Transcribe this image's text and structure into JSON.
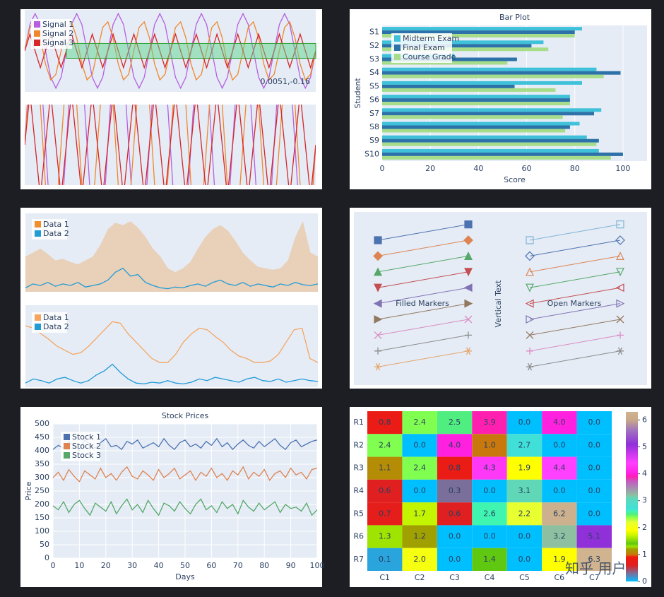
{
  "chart_data": [
    {
      "type": "signal",
      "series": [
        {
          "name": "Signal 1",
          "color": "#b660e0",
          "values": [
            0,
            0.71,
            1,
            0.71,
            0,
            -0.71,
            -1,
            -0.71,
            0,
            0.71,
            1,
            0.71,
            0,
            -0.71,
            -1,
            -0.71,
            0,
            0.71,
            1,
            0.71,
            0,
            -0.71,
            -1,
            -0.71,
            0,
            0.71,
            1,
            0.71,
            0,
            -0.71,
            -1,
            -0.71,
            0,
            0.71,
            1,
            0.71,
            0,
            -0.71,
            -1,
            -0.71,
            0,
            0.71,
            1,
            0.71,
            0,
            -0.71,
            -1,
            -0.71,
            0,
            0.71,
            1,
            0.71,
            0,
            -0.71,
            -1,
            -0.71,
            0
          ]
        },
        {
          "name": "Signal 2",
          "color": "#f0872d",
          "values": [
            0,
            0.63,
            0.78,
            0.35,
            -0.35,
            -0.78,
            -0.63,
            0,
            0.63,
            0.78,
            0.35,
            -0.35,
            -0.78,
            -0.63,
            0,
            0.63,
            0.78,
            0.35,
            -0.35,
            -0.78,
            -0.63,
            0,
            0.63,
            0.78,
            0.35,
            -0.35,
            -0.78,
            -0.63,
            0,
            0.63,
            0.78,
            0.35,
            -0.35,
            -0.78,
            -0.63,
            0,
            0.63,
            0.78,
            0.35,
            -0.35,
            -0.78,
            -0.63,
            0,
            0.63,
            0.78,
            0.35,
            -0.35,
            -0.78,
            -0.63,
            0,
            0.63,
            0.78,
            0.35,
            -0.35,
            -0.78,
            -0.63,
            0
          ]
        },
        {
          "name": "Signal 3",
          "color": "#d62728",
          "values": [
            0,
            0.45,
            0,
            -0.45,
            0,
            0.45,
            0,
            -0.45,
            0,
            0.45,
            0,
            -0.45,
            0,
            0.45,
            0,
            -0.45,
            0,
            0.45,
            0,
            -0.45,
            0,
            0.45,
            0,
            -0.45,
            0,
            0.45,
            0,
            -0.45,
            0,
            0.45,
            0,
            -0.45,
            0,
            0.45,
            0,
            -0.45,
            0,
            0.45,
            0,
            -0.45,
            0,
            0.45,
            0,
            -0.45,
            0,
            0.45,
            0,
            -0.45,
            0,
            0.45,
            0,
            -0.45,
            0,
            0.45,
            0,
            -0.45,
            0
          ]
        }
      ],
      "ylim": [
        -1.1,
        1.1
      ],
      "zoom_ylim": [
        -0.35,
        0.35
      ],
      "highlight": {
        "x": [
          8,
          56
        ],
        "y": [
          -0.2,
          0.2
        ]
      },
      "annotation": "0.0051,-0.16"
    },
    {
      "type": "hbar",
      "title": "Bar Plot",
      "xlabel": "Score",
      "ylabel": "Student",
      "categories": [
        "S1",
        "S2",
        "S3",
        "S4",
        "S5",
        "S6",
        "S7",
        "S8",
        "S9",
        "S10"
      ],
      "series": [
        {
          "name": "Midterm Exam",
          "color": "#3ec1d9",
          "values": [
            83,
            67,
            30,
            89,
            83,
            78,
            91,
            82,
            85,
            90
          ]
        },
        {
          "name": "Final Exam",
          "color": "#2c72a8",
          "values": [
            80,
            62,
            56,
            99,
            55,
            78,
            88,
            78,
            90,
            100
          ]
        },
        {
          "name": "Course Grade",
          "color": "#a6dc8a",
          "values": [
            80,
            69,
            52,
            92,
            72,
            78,
            75,
            76,
            89,
            95
          ]
        }
      ],
      "xlim": [
        0,
        110
      ],
      "xticks": [
        0,
        20,
        40,
        60,
        80,
        100
      ],
      "grid": true,
      "legend": "top-left"
    },
    {
      "type": "area",
      "series": [
        {
          "name": "Data 1",
          "color": "#f28e2b",
          "values": [
            0.45,
            0.5,
            0.55,
            0.48,
            0.4,
            0.42,
            0.38,
            0.35,
            0.4,
            0.45,
            0.6,
            0.8,
            0.88,
            0.85,
            0.9,
            0.82,
            0.7,
            0.55,
            0.45,
            0.3,
            0.25,
            0.3,
            0.38,
            0.55,
            0.7,
            0.8,
            0.85,
            0.78,
            0.65,
            0.5,
            0.4,
            0.32,
            0.3,
            0.28,
            0.3,
            0.4,
            0.7,
            0.9,
            0.5,
            0.45
          ]
        },
        {
          "name": "Data 2",
          "color": "#1f9bd6",
          "values": [
            0.05,
            0.1,
            0.08,
            0.12,
            0.07,
            0.1,
            0.08,
            0.12,
            0.06,
            0.08,
            0.1,
            0.15,
            0.25,
            0.3,
            0.2,
            0.22,
            0.12,
            0.08,
            0.05,
            0.04,
            0.06,
            0.05,
            0.08,
            0.1,
            0.07,
            0.12,
            0.15,
            0.1,
            0.08,
            0.12,
            0.07,
            0.1,
            0.08,
            0.06,
            0.1,
            0.08,
            0.12,
            0.09,
            0.08,
            0.1
          ]
        }
      ],
      "ylim": [
        0,
        1
      ],
      "legend": "top-left"
    },
    {
      "type": "line",
      "series": [
        {
          "name": "Data 1",
          "color": "#f5a561",
          "values": [
            0.75,
            0.72,
            0.65,
            0.58,
            0.5,
            0.45,
            0.4,
            0.42,
            0.5,
            0.6,
            0.7,
            0.8,
            0.78,
            0.65,
            0.55,
            0.45,
            0.35,
            0.3,
            0.3,
            0.4,
            0.55,
            0.65,
            0.72,
            0.7,
            0.62,
            0.55,
            0.45,
            0.38,
            0.35,
            0.3,
            0.3,
            0.32,
            0.4,
            0.55,
            0.7,
            0.72,
            0.35,
            0.3
          ]
        },
        {
          "name": "Data 2",
          "color": "#1f9bd6",
          "values": [
            0.05,
            0.1,
            0.08,
            0.05,
            0.1,
            0.12,
            0.08,
            0.05,
            0.08,
            0.15,
            0.2,
            0.28,
            0.18,
            0.1,
            0.05,
            0.04,
            0.06,
            0.05,
            0.08,
            0.05,
            0.04,
            0.06,
            0.1,
            0.08,
            0.12,
            0.1,
            0.08,
            0.06,
            0.1,
            0.12,
            0.08,
            0.07,
            0.1,
            0.06,
            0.08,
            0.1,
            0.08,
            0.07
          ]
        }
      ],
      "ylim": [
        0,
        1
      ],
      "legend": "top-left"
    },
    {
      "type": "markers",
      "symbols": [
        "square",
        "diamond",
        "triangle-up",
        "triangle-down",
        "triangle-left",
        "triangle-right",
        "x",
        "cross",
        "asterisk"
      ],
      "filled_colors": [
        "#4c72b0",
        "#dd8452",
        "#55a868",
        "#c44e52",
        "#8172b3",
        "#937860",
        "#da8bc3",
        "#8c8c8c",
        "#e5a46b"
      ],
      "open_colors": [
        "#7fb3d5",
        "#4c72b0",
        "#dd8452",
        "#55a868",
        "#c44e52",
        "#8172b3",
        "#937860",
        "#da8bc3",
        "#8c8c8c"
      ],
      "labels": [
        "Filled Markers",
        "Open Markers"
      ],
      "vertical_text": "Vertical Text",
      "vertical_text_color": "#e07fd0"
    },
    {
      "type": "line",
      "title": "Stock Prices",
      "xlabel": "Days",
      "ylabel": "Price",
      "x": [
        0,
        2,
        4,
        6,
        8,
        10,
        12,
        14,
        16,
        18,
        20,
        22,
        24,
        26,
        28,
        30,
        32,
        34,
        36,
        38,
        40,
        42,
        44,
        46,
        48,
        50,
        52,
        54,
        56,
        58,
        60,
        62,
        64,
        66,
        68,
        70,
        72,
        74,
        76,
        78,
        80,
        82,
        84,
        86,
        88,
        90,
        92,
        94,
        96,
        98,
        100
      ],
      "series": [
        {
          "name": "Stock 1",
          "color": "#4c72b0",
          "values": [
            405,
            420,
            410,
            435,
            415,
            400,
            440,
            425,
            410,
            430,
            445,
            415,
            420,
            405,
            435,
            425,
            440,
            410,
            420,
            430,
            415,
            445,
            420,
            405,
            430,
            440,
            415,
            425,
            410,
            435,
            420,
            445,
            415,
            430,
            405,
            425,
            440,
            420,
            410,
            435,
            415,
            430,
            445,
            420,
            405,
            430,
            440,
            415,
            425,
            435,
            440
          ]
        },
        {
          "name": "Stock 2",
          "color": "#dd8452",
          "values": [
            300,
            320,
            290,
            330,
            305,
            285,
            325,
            310,
            295,
            335,
            300,
            315,
            290,
            320,
            340,
            305,
            295,
            325,
            310,
            290,
            330,
            300,
            315,
            335,
            295,
            310,
            325,
            290,
            320,
            305,
            335,
            300,
            315,
            290,
            325,
            310,
            340,
            295,
            320,
            305,
            330,
            290,
            315,
            325,
            300,
            335,
            310,
            320,
            295,
            330,
            335
          ]
        },
        {
          "name": "Stock 3",
          "color": "#55a868",
          "values": [
            195,
            180,
            210,
            170,
            200,
            215,
            185,
            160,
            205,
            190,
            175,
            210,
            165,
            195,
            220,
            180,
            200,
            170,
            215,
            185,
            160,
            205,
            195,
            175,
            210,
            185,
            165,
            200,
            220,
            180,
            195,
            170,
            210,
            185,
            200,
            165,
            215,
            190,
            175,
            205,
            180,
            195,
            210,
            170,
            200,
            185,
            190,
            175,
            205,
            160,
            180
          ]
        }
      ],
      "xlim": [
        0,
        100
      ],
      "xticks": [
        0,
        10,
        20,
        30,
        40,
        50,
        60,
        70,
        80,
        90,
        100
      ],
      "ylim": [
        0,
        500
      ],
      "yticks": [
        0,
        50,
        100,
        150,
        200,
        250,
        300,
        350,
        400,
        450,
        500
      ],
      "grid": true,
      "legend": "top-left"
    },
    {
      "type": "heatmap",
      "rows": [
        "R1",
        "R2",
        "R3",
        "R4",
        "R5",
        "R6",
        "R7"
      ],
      "columns": [
        "C1",
        "C2",
        "C3",
        "C4",
        "C5",
        "C6",
        "C7"
      ],
      "values": [
        [
          0.8,
          2.4,
          2.5,
          3.9,
          0,
          4,
          0
        ],
        [
          2.4,
          0,
          4,
          1,
          2.7,
          0,
          0
        ],
        [
          1.1,
          2.4,
          0.8,
          4.3,
          1.9,
          4.4,
          0
        ],
        [
          0.6,
          0,
          0.3,
          0,
          3.1,
          0,
          0
        ],
        [
          0.7,
          1.7,
          0.6,
          2.6,
          2.2,
          6.2,
          0
        ],
        [
          1.3,
          1.2,
          0,
          0,
          0,
          3.2,
          5.1
        ],
        [
          0.1,
          2,
          0,
          1.4,
          0,
          1.9,
          6.3
        ]
      ],
      "value_labels": [
        [
          "0.8",
          "2.4",
          "2.5",
          "3.9",
          "0.0",
          "4.0",
          "0.0"
        ],
        [
          "2.4",
          "0.0",
          "4.0",
          "1.0",
          "2.7",
          "0.0",
          "0.0"
        ],
        [
          "1.1",
          "2.4",
          "0.8",
          "4.3",
          "1.9",
          "4.4",
          "0.0"
        ],
        [
          "0.6",
          "0.0",
          "0.3",
          "0.0",
          "3.1",
          "0.0",
          "0.0"
        ],
        [
          "0.7",
          "1.7",
          "0.6",
          "2.6",
          "2.2",
          "6.2",
          "0.0"
        ],
        [
          "1.3",
          "1.2",
          "0.0",
          "0.0",
          "0.0",
          "3.2",
          "5.1"
        ],
        [
          "0.1",
          "2.0",
          "0.0",
          "1.4",
          "0.0",
          "1.9",
          "6.3"
        ]
      ],
      "zlim": [
        0,
        6.3
      ],
      "zticks": [
        0,
        1,
        2,
        3,
        4,
        5,
        6
      ],
      "colorscale": [
        [
          0,
          "#00bfff"
        ],
        [
          0.3,
          "#7a6e9a"
        ],
        [
          0.6,
          "#e02020"
        ],
        [
          0.9,
          "#f01810"
        ],
        [
          1.0,
          "#c8780c"
        ],
        [
          1.2,
          "#a0a000"
        ],
        [
          1.3,
          "#9ee400"
        ],
        [
          1.4,
          "#60c810"
        ],
        [
          1.7,
          "#c4f500"
        ],
        [
          1.9,
          "#ffff00"
        ],
        [
          2.2,
          "#e8ff30"
        ],
        [
          2.4,
          "#80ff50"
        ],
        [
          2.5,
          "#50ee80"
        ],
        [
          2.6,
          "#40f5b0"
        ],
        [
          2.7,
          "#40e0d8"
        ],
        [
          3.1,
          "#60d8b8"
        ],
        [
          3.2,
          "#8cc0a0"
        ],
        [
          3.7,
          "#c060c0"
        ],
        [
          3.9,
          "#ff20b0"
        ],
        [
          4.0,
          "#ff20e0"
        ],
        [
          4.4,
          "#ff40ff"
        ],
        [
          5.1,
          "#9030d8"
        ],
        [
          5.6,
          "#a070c0"
        ],
        [
          6.0,
          "#c8a888"
        ],
        [
          6.3,
          "#d0b490"
        ]
      ]
    }
  ],
  "watermark": "知乎 用户"
}
